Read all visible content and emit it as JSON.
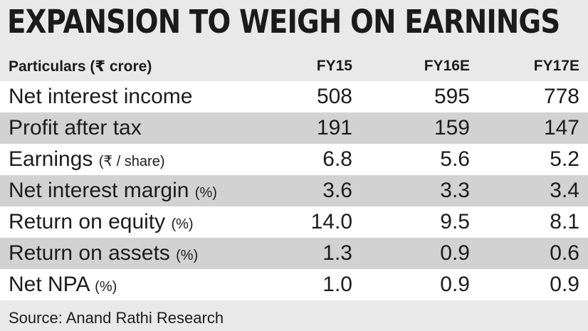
{
  "title": "EXPANSION TO WEIGH ON EARNINGS",
  "chart_data": {
    "type": "table",
    "columns": [
      "Particulars (₹ crore)",
      "FY15",
      "FY16E",
      "FY17E"
    ],
    "rows": [
      {
        "label": "Net interest income",
        "unit": "",
        "values": [
          "508",
          "595",
          "778"
        ]
      },
      {
        "label": "Profit after tax",
        "unit": "",
        "values": [
          "191",
          "159",
          "147"
        ]
      },
      {
        "label": "Earnings",
        "unit": "(₹ / share)",
        "values": [
          "6.8",
          "5.6",
          "5.2"
        ]
      },
      {
        "label": "Net interest margin",
        "unit": "(%)",
        "values": [
          "3.6",
          "3.3",
          "3.4"
        ]
      },
      {
        "label": "Return on equity",
        "unit": "(%)",
        "values": [
          "14.0",
          "9.5",
          "8.1"
        ]
      },
      {
        "label": "Return on assets",
        "unit": "(%)",
        "values": [
          "1.3",
          "0.9",
          "0.6"
        ]
      },
      {
        "label": "Net NPA",
        "unit": "(%)",
        "values": [
          "1.0",
          "0.9",
          "0.9"
        ]
      }
    ]
  },
  "source": "Source: Anand Rathi Research"
}
